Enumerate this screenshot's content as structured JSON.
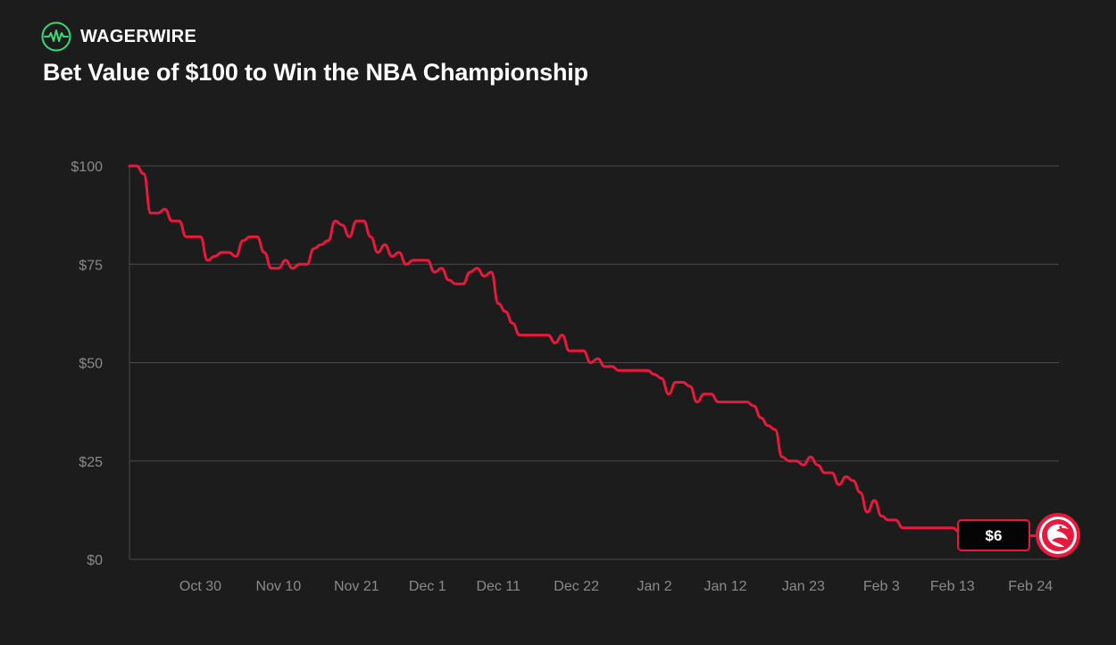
{
  "brand": {
    "name": "WAGERWIRE",
    "icon": "pulse-icon",
    "accent_color": "#39d97a"
  },
  "chart_data": {
    "type": "line",
    "title": "Bet Value of $100 to Win the NBA Championship",
    "xlabel": "",
    "ylabel": "",
    "ylim": [
      0,
      100
    ],
    "yticks": [
      0,
      25,
      50,
      75,
      100
    ],
    "ytick_labels": [
      "$0",
      "$25",
      "$50",
      "$75",
      "$100"
    ],
    "xlim": [
      "Oct 20",
      "Feb 28"
    ],
    "xticks": [
      "Oct 30",
      "Nov 10",
      "Nov 21",
      "Dec 1",
      "Dec 11",
      "Dec 22",
      "Jan 2",
      "Jan 12",
      "Jan 23",
      "Feb 3",
      "Feb 13",
      "Feb 24"
    ],
    "grid": true,
    "line_color": "#e8193c",
    "series": [
      {
        "x": [
          "Oct 20",
          "Oct 21",
          "Oct 22",
          "Oct 23",
          "Oct 24",
          "Oct 25",
          "Oct 26",
          "Oct 27",
          "Oct 28",
          "Oct 29",
          "Oct 30",
          "Oct 31",
          "Nov 1",
          "Nov 2",
          "Nov 3",
          "Nov 4",
          "Nov 5",
          "Nov 6",
          "Nov 7",
          "Nov 8",
          "Nov 9",
          "Nov 10",
          "Nov 11",
          "Nov 12",
          "Nov 13",
          "Nov 14",
          "Nov 15",
          "Nov 16",
          "Nov 17",
          "Nov 18",
          "Nov 19",
          "Nov 20",
          "Nov 21",
          "Nov 22",
          "Nov 23",
          "Nov 24",
          "Nov 25",
          "Nov 26",
          "Nov 27",
          "Nov 28",
          "Nov 29",
          "Nov 30",
          "Dec 1",
          "Dec 2",
          "Dec 3",
          "Dec 4",
          "Dec 5",
          "Dec 6",
          "Dec 7",
          "Dec 8",
          "Dec 9",
          "Dec 10",
          "Dec 11",
          "Dec 12",
          "Dec 13",
          "Dec 14",
          "Dec 15",
          "Dec 16",
          "Dec 17",
          "Dec 18",
          "Dec 19",
          "Dec 20",
          "Dec 21",
          "Dec 22",
          "Dec 23",
          "Dec 24",
          "Dec 25",
          "Dec 26",
          "Dec 27",
          "Dec 28",
          "Dec 29",
          "Dec 30",
          "Dec 31",
          "Jan 1",
          "Jan 2",
          "Jan 3",
          "Jan 4",
          "Jan 5",
          "Jan 6",
          "Jan 7",
          "Jan 8",
          "Jan 9",
          "Jan 10",
          "Jan 11",
          "Jan 12",
          "Jan 13",
          "Jan 14",
          "Jan 15",
          "Jan 16",
          "Jan 17",
          "Jan 18",
          "Jan 19",
          "Jan 20",
          "Jan 21",
          "Jan 22",
          "Jan 23",
          "Jan 24",
          "Jan 25",
          "Jan 26",
          "Jan 27",
          "Jan 28",
          "Jan 29",
          "Jan 30",
          "Jan 31",
          "Feb 1",
          "Feb 2",
          "Feb 3",
          "Feb 4",
          "Feb 5",
          "Feb 6",
          "Feb 7",
          "Feb 8",
          "Feb 9",
          "Feb 10",
          "Feb 11",
          "Feb 12",
          "Feb 13",
          "Feb 14",
          "Feb 15",
          "Feb 16",
          "Feb 17",
          "Feb 18",
          "Feb 19",
          "Feb 20",
          "Feb 21",
          "Feb 22"
        ],
        "values": [
          100,
          100,
          98,
          88,
          88,
          89,
          86,
          86,
          82,
          82,
          82,
          76,
          77,
          78,
          78,
          77,
          81,
          82,
          82,
          78,
          74,
          74,
          76,
          74,
          75,
          75,
          79,
          80,
          81,
          86,
          85,
          82,
          86,
          86,
          82,
          78,
          80,
          77,
          78,
          75,
          76,
          76,
          76,
          73,
          74,
          71,
          70,
          70,
          73,
          74,
          72,
          73,
          65,
          63,
          60,
          57,
          57,
          57,
          57,
          57,
          55,
          57,
          53,
          53,
          53,
          50,
          51,
          49,
          49,
          48,
          48,
          48,
          48,
          48,
          47,
          46,
          42,
          45,
          45,
          44,
          40,
          42,
          42,
          40,
          40,
          40,
          40,
          40,
          39,
          36,
          34,
          33,
          26,
          25,
          25,
          24,
          26,
          24,
          22,
          22,
          19,
          21,
          20,
          17,
          12,
          15,
          11,
          10,
          10,
          8,
          8,
          8,
          8,
          8,
          8,
          8,
          8,
          7,
          7,
          7,
          6,
          6,
          6,
          6,
          6,
          6
        ]
      }
    ],
    "end_label": "$6",
    "end_marker": "hawk-logo-icon"
  }
}
